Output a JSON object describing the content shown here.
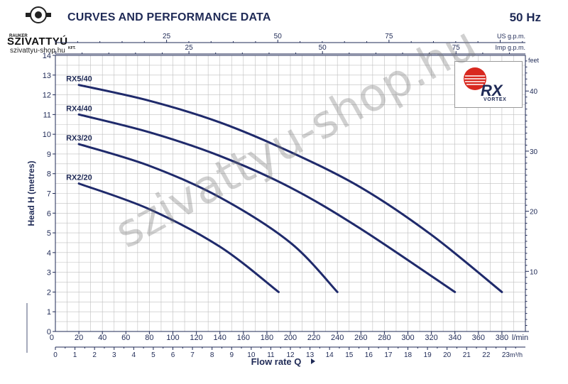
{
  "header": {
    "title": "CURVES AND PERFORMANCE DATA",
    "frequency": "50 Hz"
  },
  "logo": {
    "maker": "RAUKER",
    "wordmark": "SZIVATTYÚ",
    "suffix": "KFT.",
    "site": "szivattyu-shop.hu"
  },
  "brand_logo": {
    "text": "RX",
    "subtext": "VORTEX"
  },
  "watermark": "szivattyu-shop.hu",
  "chart_data": {
    "type": "line",
    "xlabel": "Flow rate Q",
    "ylabel": "Head H (metres)",
    "xlim": [
      0,
      400
    ],
    "ylim": [
      0,
      14
    ],
    "x_unit": "l/min",
    "x_ticks": [
      20,
      40,
      60,
      80,
      100,
      120,
      140,
      160,
      180,
      200,
      220,
      240,
      260,
      280,
      300,
      320,
      340,
      360,
      380
    ],
    "y_ticks": [
      0,
      1,
      2,
      3,
      4,
      5,
      6,
      7,
      8,
      9,
      10,
      11,
      12,
      13,
      14
    ],
    "x0_label": "0",
    "grid": true,
    "secondary_axes": {
      "m3h": {
        "unit": "m³/h",
        "ticks": [
          0,
          1,
          2,
          3,
          4,
          5,
          6,
          7,
          8,
          9,
          10,
          11,
          12,
          13,
          14,
          15,
          16,
          17,
          18,
          19,
          20,
          21,
          22,
          23
        ]
      },
      "us_gpm": {
        "unit": "US g.p.m.",
        "ticks": [
          25,
          50,
          75
        ]
      },
      "imp_gpm": {
        "unit": "Imp g.p.m.",
        "ticks": [
          25,
          50,
          75
        ]
      },
      "feet": {
        "unit": "feet",
        "ticks": [
          10,
          20,
          30,
          40
        ]
      }
    },
    "series": [
      {
        "name": "RX5/40",
        "x": [
          20,
          80,
          140,
          200,
          260,
          320,
          380
        ],
        "y": [
          12.5,
          11.7,
          10.6,
          9.1,
          7.3,
          4.9,
          2.0
        ]
      },
      {
        "name": "RX4/40",
        "x": [
          20,
          80,
          140,
          200,
          260,
          340
        ],
        "y": [
          11.0,
          10.1,
          8.9,
          7.3,
          5.2,
          2.0
        ]
      },
      {
        "name": "RX3/20",
        "x": [
          20,
          80,
          140,
          200,
          240
        ],
        "y": [
          9.5,
          8.4,
          6.8,
          4.5,
          2.0
        ]
      },
      {
        "name": "RX2/20",
        "x": [
          20,
          80,
          140,
          190
        ],
        "y": [
          7.5,
          6.2,
          4.3,
          2.0
        ]
      }
    ],
    "colors": {
      "curve": "#1f2a6b",
      "grid": "#bfbfbf",
      "axis": "#1f2a56"
    }
  }
}
